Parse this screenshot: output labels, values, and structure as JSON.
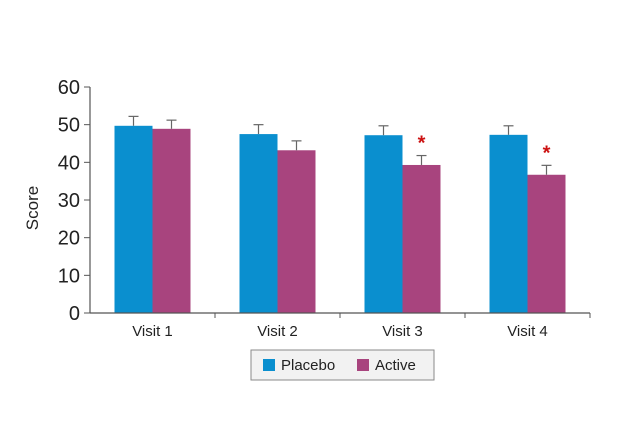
{
  "chart_data": {
    "type": "bar",
    "title": "",
    "xlabel": "",
    "ylabel": "Score",
    "ylim": [
      0,
      60
    ],
    "yticks": [
      0,
      10,
      20,
      30,
      40,
      50,
      60
    ],
    "grid": false,
    "legend_position": "bottom-center",
    "categories": [
      "Visit 1",
      "Visit 2",
      "Visit 3",
      "Visit 4"
    ],
    "series": [
      {
        "name": "Placebo",
        "color": "#0a8fcf",
        "values": [
          49.7,
          47.5,
          47.2,
          47.3
        ],
        "errors": [
          2.5,
          2.5,
          2.5,
          2.4
        ],
        "significance": [
          "",
          "",
          "",
          ""
        ]
      },
      {
        "name": "Active",
        "color": "#a8447e",
        "values": [
          48.9,
          43.2,
          39.3,
          36.7
        ],
        "errors": [
          2.3,
          2.5,
          2.5,
          2.5
        ],
        "significance": [
          "",
          "",
          "*",
          "*"
        ]
      }
    ],
    "significance_color": "#cc1111"
  }
}
